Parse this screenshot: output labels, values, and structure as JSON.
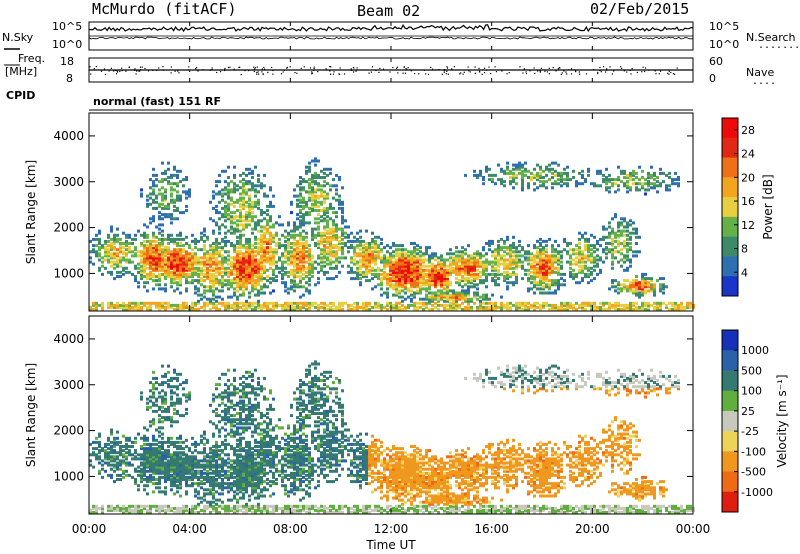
{
  "header": {
    "station": "McMurdo (fitACF)",
    "beam": "Beam 02",
    "date": "02/Feb/2015"
  },
  "top_panels": {
    "nsky_label": "N.Sky",
    "nsky_ticks": [
      "10^5",
      "10^0"
    ],
    "nsearch_label": "N.Search",
    "nsearch_ticks": [
      "10^5",
      "10^0"
    ],
    "freq_label": "Freq.",
    "freq_unit": "[MHz]",
    "freq_ticks": [
      "18",
      "8"
    ],
    "nave_label": "Nave",
    "nave_ticks": [
      "60",
      "0"
    ],
    "cpid_label": "CPID",
    "cpid_value": "normal (fast) 151 RF"
  },
  "colors": {
    "power": [
      "#1a35c8",
      "#2e6fb0",
      "#3d8a6a",
      "#64b14a",
      "#e7d040",
      "#f2a51e",
      "#f07018",
      "#e02814",
      "#ee0a0a"
    ],
    "velocity": [
      "#1730b8",
      "#2a62a8",
      "#347a72",
      "#5fae3e",
      "#c8c8bc",
      "#ecd35a",
      "#f0981e",
      "#ef6a14",
      "#e01e10"
    ]
  },
  "chart_data": [
    {
      "type": "heatmap",
      "panel": "power",
      "ylabel": "Slant Range [km]",
      "yticks": [
        1000,
        2000,
        3000,
        4000
      ],
      "ylim": [
        180,
        4500
      ],
      "xlim_hours": [
        0,
        24
      ],
      "colorbar_label": "Power [dB]",
      "colorbar_ticks": [
        4,
        8,
        12,
        16,
        20,
        24,
        28
      ],
      "colorbar_range": [
        0,
        30
      ]
    },
    {
      "type": "heatmap",
      "panel": "velocity",
      "ylabel": "Slant Range [km]",
      "yticks": [
        1000,
        2000,
        3000,
        4000
      ],
      "ylim": [
        180,
        4500
      ],
      "xlim_hours": [
        0,
        24
      ],
      "xticks": [
        "00:00",
        "04:00",
        "08:00",
        "12:00",
        "16:00",
        "20:00",
        "00:00"
      ],
      "xlabel": "Time UT",
      "colorbar_label": "Velocity [m s⁻¹]",
      "colorbar_ticks": [
        "1000",
        "500",
        "100",
        "25",
        "-25",
        "-100",
        "-500",
        "-1000"
      ]
    }
  ]
}
